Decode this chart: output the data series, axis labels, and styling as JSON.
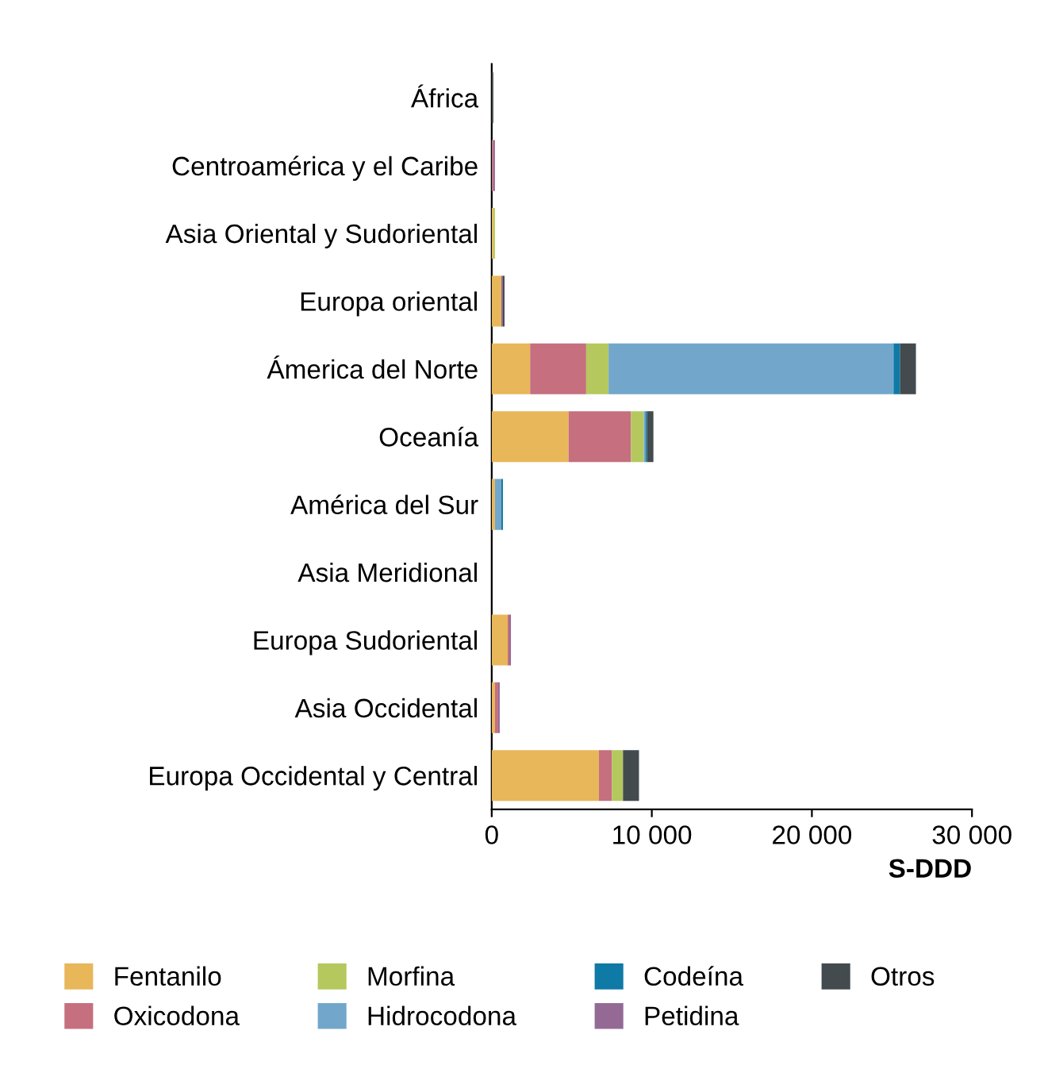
{
  "chart_data": {
    "type": "bar",
    "orientation": "horizontal",
    "stacked": true,
    "xlabel": "S-DDD",
    "categories": [
      "África",
      "Centroamérica y el Caribe",
      "Asia Oriental y Sudoriental",
      "Europa oriental",
      "Ámerica del Norte",
      "Oceanía",
      "América del Sur",
      "Asia Meridional",
      "Europa Sudoriental",
      "Asia Occidental",
      "Europa Occidental y Central"
    ],
    "series": [
      {
        "name": "Fentanilo",
        "color": "#e8b75a",
        "values": [
          null,
          null,
          100,
          600,
          2400,
          4800,
          200,
          null,
          1000,
          200,
          6700
        ]
      },
      {
        "name": "Oxicodona",
        "color": "#c56f7f",
        "values": [
          null,
          100,
          null,
          null,
          3500,
          3900,
          null,
          null,
          100,
          200,
          800
        ]
      },
      {
        "name": "Morfina",
        "color": "#b5c85e",
        "values": [
          null,
          null,
          100,
          null,
          1400,
          800,
          null,
          null,
          null,
          null,
          700
        ]
      },
      {
        "name": "Hidrocodona",
        "color": "#72a7cb",
        "values": [
          null,
          null,
          null,
          null,
          17800,
          100,
          400,
          null,
          null,
          null,
          null
        ]
      },
      {
        "name": "Codeína",
        "color": "#0f7aa6",
        "values": [
          null,
          null,
          null,
          null,
          400,
          100,
          100,
          null,
          null,
          null,
          null
        ]
      },
      {
        "name": "Petidina",
        "color": "#946a94",
        "values": [
          null,
          100,
          null,
          100,
          null,
          null,
          null,
          null,
          100,
          100,
          null
        ]
      },
      {
        "name": "Otros",
        "color": "#434b4f",
        "values": [
          100,
          null,
          null,
          100,
          1000,
          400,
          null,
          null,
          null,
          null,
          1000
        ]
      }
    ],
    "xlim": [
      0,
      30000
    ],
    "xticks": [
      0,
      {
        "value": 10000,
        "label": "10 000"
      },
      {
        "value": 20000,
        "label": "20 000"
      },
      {
        "value": 30000,
        "label": "30 000"
      }
    ],
    "grid": false,
    "legend": "bottom"
  }
}
